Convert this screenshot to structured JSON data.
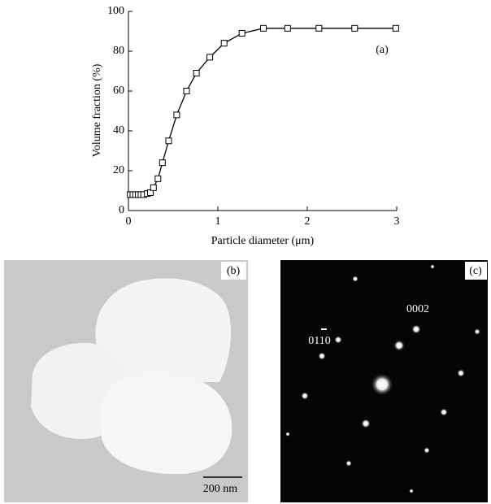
{
  "chart_data": {
    "type": "line",
    "x_label": "Particle diameter (μm)",
    "y_label": "Volume fraction (%)",
    "annotation": "(a)",
    "x": [
      0.02,
      0.05,
      0.08,
      0.11,
      0.14,
      0.17,
      0.21,
      0.245,
      0.28,
      0.33,
      0.38,
      0.45,
      0.54,
      0.65,
      0.76,
      0.91,
      1.07,
      1.27,
      1.51,
      1.78,
      2.13,
      2.53,
      2.99
    ],
    "series": [
      {
        "color": "#000000",
        "values": [
          8,
          8,
          8,
          8,
          8,
          8,
          8.5,
          9,
          11.5,
          16,
          24,
          35,
          48,
          60,
          69,
          77,
          84,
          89,
          91.5,
          91.5,
          91.5,
          91.5,
          91.5
        ]
      }
    ],
    "xlim": [
      0,
      3
    ],
    "xticks": [
      0,
      1,
      2,
      3
    ],
    "ylim": [
      0,
      100
    ],
    "yticks": [
      0,
      20,
      40,
      60,
      80,
      100
    ]
  },
  "panels": [
    {
      "label": "(b)",
      "scale_bar": "200 nm"
    },
    {
      "label": "(c)",
      "spots": [
        "0002",
        "0110"
      ]
    }
  ]
}
